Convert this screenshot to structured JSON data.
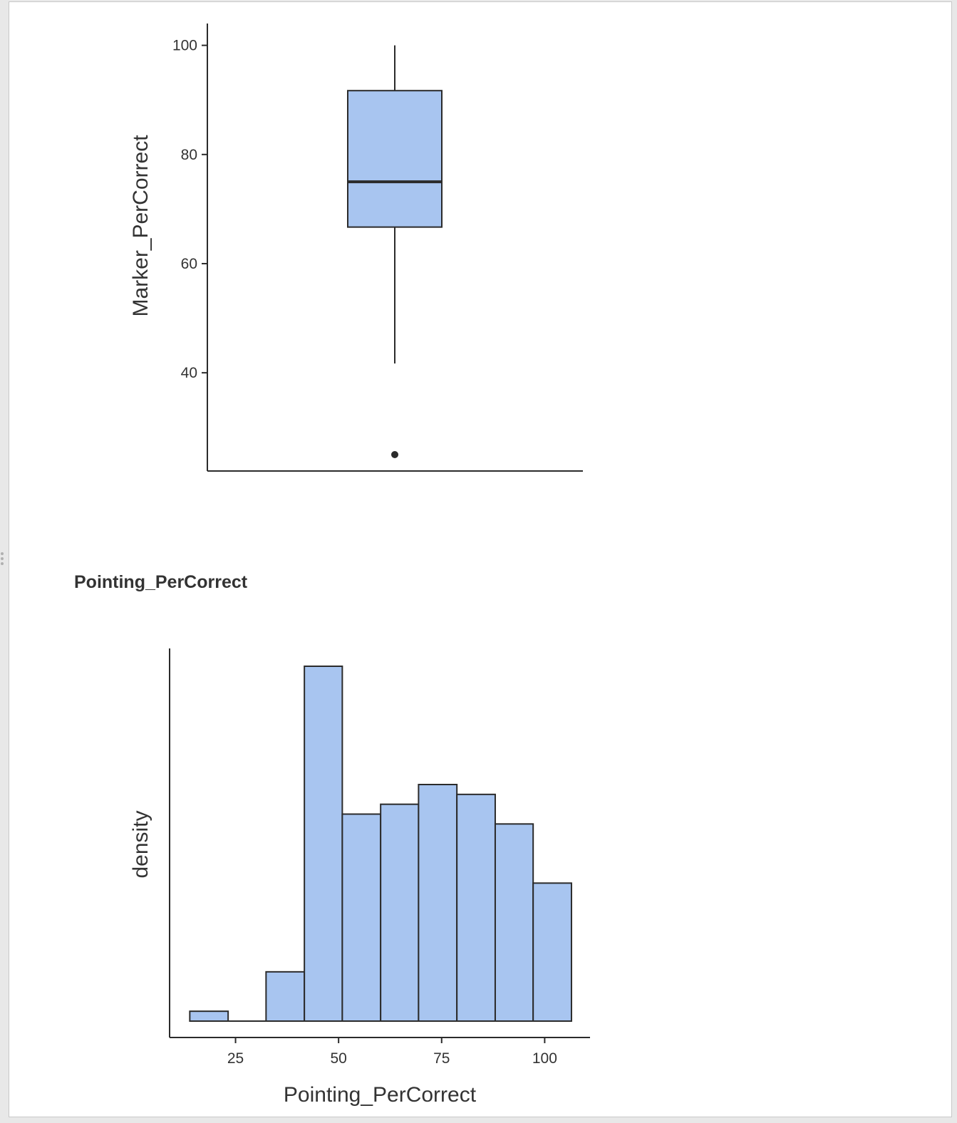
{
  "colors": {
    "fill": "#a8c5f0",
    "stroke": "#2b2b2b",
    "background": "#ffffff"
  },
  "chart_data": [
    {
      "type": "box",
      "ylabel": "Marker_PerCorrect",
      "yticks": [
        40,
        60,
        80,
        100
      ],
      "ylim": [
        22,
        104
      ],
      "box": {
        "whisker_low": 41.7,
        "q1": 66.7,
        "median": 75,
        "q3": 91.7,
        "whisker_high": 100
      },
      "outliers": [
        25
      ],
      "grid": false
    },
    {
      "type": "histogram",
      "title": "Pointing_PerCorrect",
      "xlabel": "Pointing_PerCorrect",
      "ylabel": "density",
      "xticks": [
        25,
        50,
        75,
        100
      ],
      "xlim": [
        9,
        111
      ],
      "bins": [
        {
          "start": 13.9,
          "end": 23.2,
          "density": 0.0005
        },
        {
          "start": 23.2,
          "end": 32.4,
          "density": 0.0
        },
        {
          "start": 32.4,
          "end": 41.7,
          "density": 0.0025
        },
        {
          "start": 41.7,
          "end": 50.9,
          "density": 0.018
        },
        {
          "start": 50.9,
          "end": 60.2,
          "density": 0.0105
        },
        {
          "start": 60.2,
          "end": 69.4,
          "density": 0.011
        },
        {
          "start": 69.4,
          "end": 78.7,
          "density": 0.012
        },
        {
          "start": 78.7,
          "end": 88.0,
          "density": 0.0115
        },
        {
          "start": 88.0,
          "end": 97.2,
          "density": 0.01
        },
        {
          "start": 97.2,
          "end": 106.5,
          "density": 0.007
        }
      ],
      "grid": false
    }
  ]
}
